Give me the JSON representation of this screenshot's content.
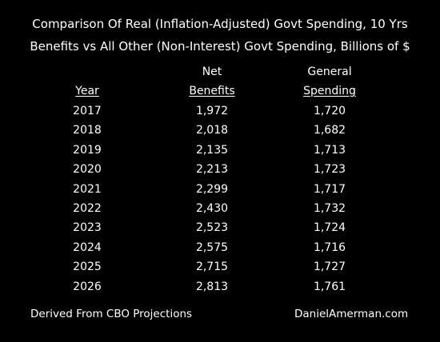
{
  "chart_data": {
    "type": "table",
    "title": "Comparison Of Real (Inflation-Adjusted)  Govt Spending, 10 Yrs",
    "subtitle": "Benefits vs All Other (Non-Interest) Govt Spending, Billions of $",
    "columns": [
      {
        "line1": "",
        "line2": "Year"
      },
      {
        "line1": "Net",
        "line2": "Benefits"
      },
      {
        "line1": "General",
        "line2": "Spending"
      }
    ],
    "rows": [
      [
        "2017",
        "1,972",
        "1,720"
      ],
      [
        "2018",
        "2,018",
        "1,682"
      ],
      [
        "2019",
        "2,135",
        "1,713"
      ],
      [
        "2020",
        "2,213",
        "1,723"
      ],
      [
        "2021",
        "2,299",
        "1,717"
      ],
      [
        "2022",
        "2,430",
        "1,732"
      ],
      [
        "2023",
        "2,523",
        "1,724"
      ],
      [
        "2024",
        "2,575",
        "1,716"
      ],
      [
        "2025",
        "2,715",
        "1,727"
      ],
      [
        "2026",
        "2,813",
        "1,761"
      ]
    ]
  },
  "footer": {
    "left": "Derived From CBO Projections",
    "right": "DanielAmerman.com"
  }
}
